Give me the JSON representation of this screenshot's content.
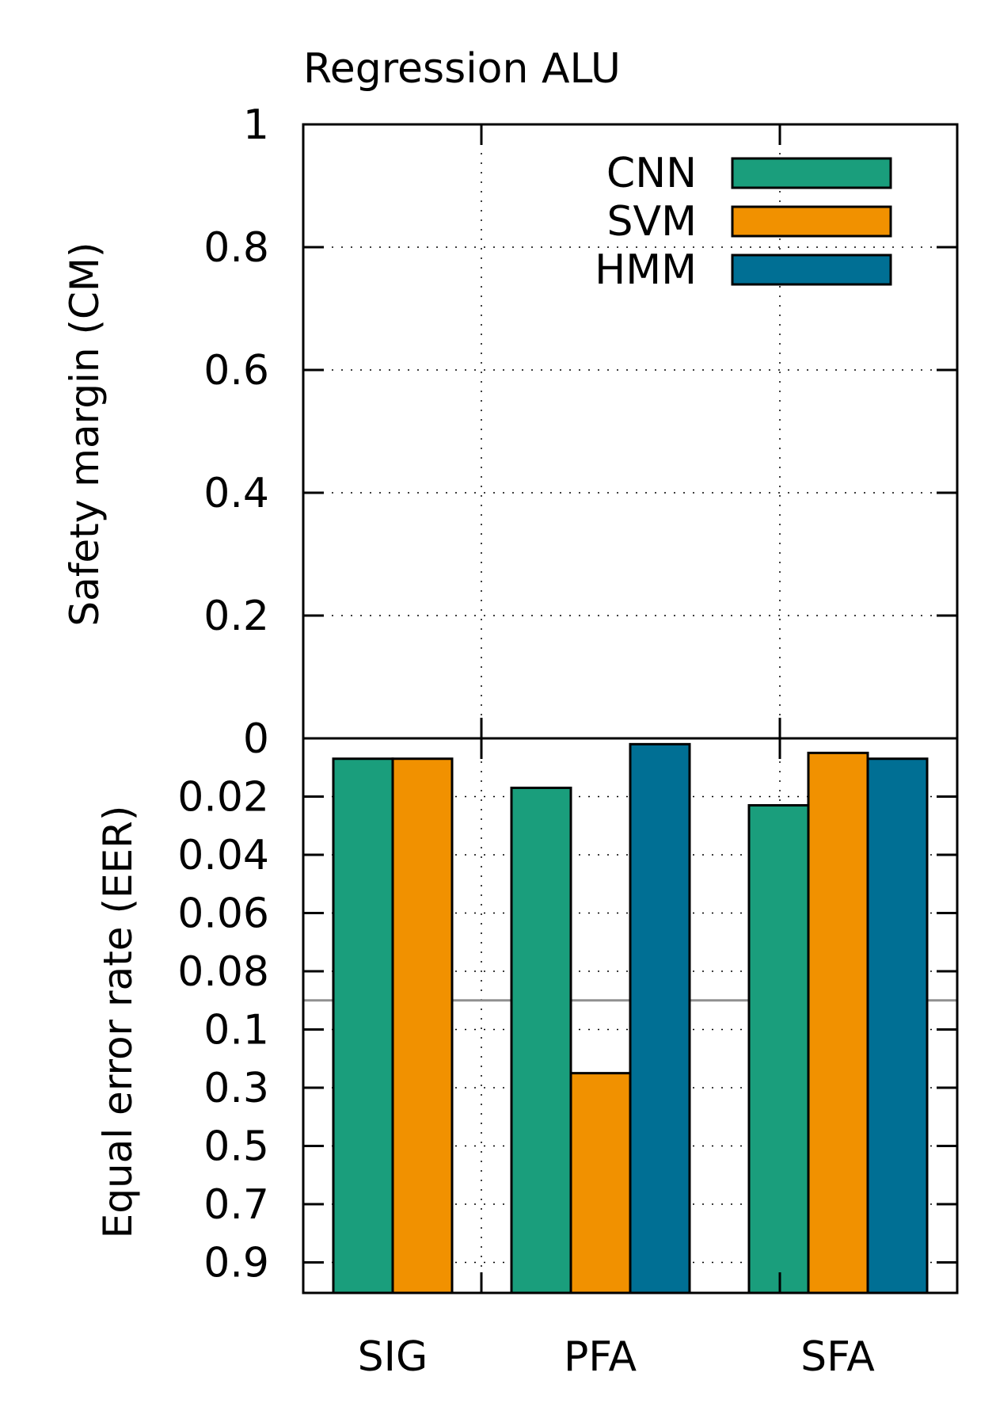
{
  "chart_data": {
    "type": "bar",
    "title": "Regression ALU",
    "categories": [
      "SIG",
      "PFA",
      "SFA"
    ],
    "series": [
      {
        "name": "CNN",
        "color": "#1a9e7c",
        "eer": [
          0.007,
          0.017,
          0.023
        ]
      },
      {
        "name": "SVM",
        "color": "#f19100",
        "eer": [
          0.007,
          0.25,
          0.005
        ]
      },
      {
        "name": "HMM",
        "color": "#006f94",
        "eer": [
          null,
          0.002,
          0.007
        ]
      }
    ],
    "top_panel": {
      "ylabel": "Safety margin (CM)",
      "ylim": [
        0,
        1
      ],
      "ticks": [
        "0",
        "0.2",
        "0.4",
        "0.6",
        "0.8",
        "1"
      ],
      "values": "none"
    },
    "bottom_panel": {
      "ylabel": "Equal error rate (EER)",
      "ylim": [
        0,
        0.95
      ],
      "scale": "piecewise: linear 0-0.1 step 0.02, then linear 0.1-0.9 step 0.2",
      "ticks": [
        "0.02",
        "0.04",
        "0.06",
        "0.08",
        "0.1",
        "0.3",
        "0.5",
        "0.7",
        "0.9"
      ],
      "reference_line": 0.09
    },
    "legend_position": "top-right",
    "grid": "dotted"
  }
}
